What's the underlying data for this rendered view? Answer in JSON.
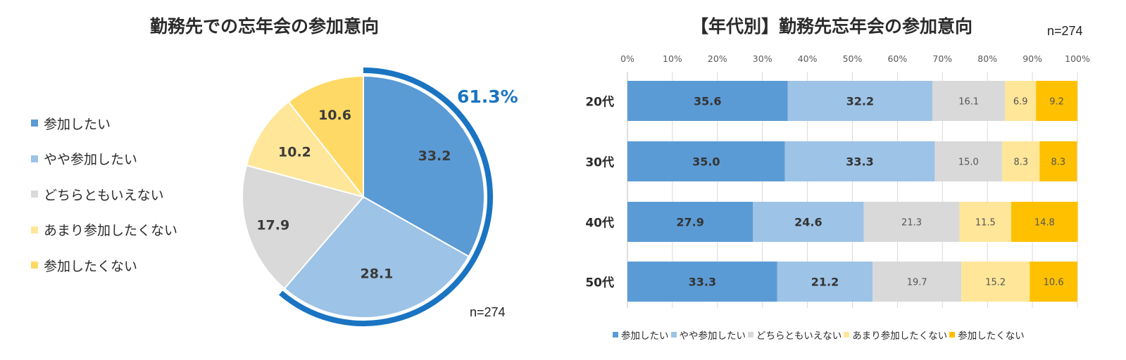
{
  "colors": {
    "want": "#5b9bd5",
    "somewhat_want": "#9dc3e6",
    "neutral": "#d9d9d9",
    "not_really": "#ffe699",
    "not_want": "#ffc000",
    "pie_yellow": "#ffd966",
    "highlight": "#1a74c2"
  },
  "left": {
    "title": "勤務先での忘年会の参加意向",
    "n_label": "n=274",
    "highlight_label": "61.3%",
    "legend": [
      "参加したい",
      "やや参加したい",
      "どちらともいえない",
      "あまり参加したくない",
      "参加したくない"
    ]
  },
  "right": {
    "title": "【年代別】勤務先忘年会の参加意向",
    "n_label": "n=274",
    "legend": [
      "参加したい",
      "やや参加したい",
      "どちらともいえない",
      "あまり参加したくない",
      "参加したくない"
    ]
  },
  "chart_data": [
    {
      "type": "pie",
      "title": "勤務先での忘年会の参加意向",
      "categories": [
        "参加したい",
        "やや参加したい",
        "どちらともいえない",
        "あまり参加したくない",
        "参加したくない"
      ],
      "values": [
        33.2,
        28.1,
        17.9,
        10.2,
        10.6
      ],
      "value_labels": [
        "33.2",
        "28.1",
        "17.9",
        "10.2",
        "10.6"
      ],
      "annotation": "61.3%",
      "legend_position": "left"
    },
    {
      "type": "bar",
      "orientation": "horizontal",
      "stacked": "percent",
      "title": "【年代別】勤務先忘年会の参加意向",
      "categories": [
        "20代",
        "30代",
        "40代",
        "50代"
      ],
      "xlim": [
        0,
        100
      ],
      "xticks": [
        "0%",
        "10%",
        "20%",
        "30%",
        "40%",
        "50%",
        "60%",
        "70%",
        "80%",
        "90%",
        "100%"
      ],
      "series": [
        {
          "name": "参加したい",
          "values": [
            35.6,
            35.0,
            27.9,
            33.3
          ],
          "labels": [
            "35.6",
            "35.0",
            "27.9",
            "33.3"
          ]
        },
        {
          "name": "やや参加したい",
          "values": [
            32.2,
            33.3,
            24.6,
            21.2
          ],
          "labels": [
            "32.2",
            "33.3",
            "24.6",
            "21.2"
          ]
        },
        {
          "name": "どちらともいえない",
          "values": [
            16.1,
            15.0,
            21.3,
            19.7
          ],
          "labels": [
            "16.1",
            "15.0",
            "21.3",
            "19.7"
          ]
        },
        {
          "name": "あまり参加したくない",
          "values": [
            6.9,
            8.3,
            11.5,
            15.2
          ],
          "labels": [
            "6.9",
            "8.3",
            "11.5",
            "15.2"
          ]
        },
        {
          "name": "参加したくない",
          "values": [
            9.2,
            8.3,
            14.8,
            10.6
          ],
          "labels": [
            "9.2",
            "8.3",
            "14.8",
            "10.6"
          ]
        }
      ],
      "legend_position": "bottom",
      "grid": true
    }
  ]
}
